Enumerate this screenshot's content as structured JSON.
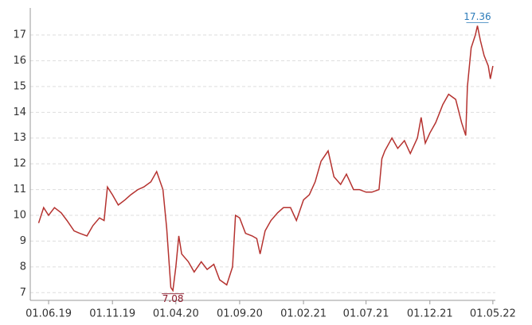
{
  "chart_data": {
    "type": "line",
    "x": [
      "2019-05-08",
      "2019-05-20",
      "2019-06-01",
      "2019-06-15",
      "2019-07-01",
      "2019-07-15",
      "2019-08-01",
      "2019-08-15",
      "2019-09-01",
      "2019-09-15",
      "2019-10-01",
      "2019-10-12",
      "2019-10-20",
      "2019-11-01",
      "2019-11-15",
      "2019-12-01",
      "2019-12-15",
      "2020-01-01",
      "2020-01-15",
      "2020-02-01",
      "2020-02-15",
      "2020-03-01",
      "2020-03-10",
      "2020-03-20",
      "2020-03-25",
      "2020-04-01",
      "2020-04-08",
      "2020-04-15",
      "2020-05-01",
      "2020-05-15",
      "2020-06-01",
      "2020-06-15",
      "2020-07-01",
      "2020-07-15",
      "2020-08-01",
      "2020-08-15",
      "2020-08-22",
      "2020-09-01",
      "2020-09-15",
      "2020-10-01",
      "2020-10-12",
      "2020-10-20",
      "2020-11-01",
      "2020-11-15",
      "2020-12-01",
      "2020-12-15",
      "2021-01-01",
      "2021-01-15",
      "2021-02-01",
      "2021-02-15",
      "2021-03-01",
      "2021-03-15",
      "2021-04-01",
      "2021-04-15",
      "2021-05-01",
      "2021-05-15",
      "2021-06-01",
      "2021-06-15",
      "2021-07-01",
      "2021-07-15",
      "2021-08-01",
      "2021-08-08",
      "2021-08-15",
      "2021-09-01",
      "2021-09-15",
      "2021-10-01",
      "2021-10-15",
      "2021-11-01",
      "2021-11-10",
      "2021-11-20",
      "2021-12-01",
      "2021-12-15",
      "2022-01-01",
      "2022-01-15",
      "2022-02-01",
      "2022-02-15",
      "2022-02-25",
      "2022-03-01",
      "2022-03-10",
      "2022-03-20",
      "2022-03-25",
      "2022-04-01",
      "2022-04-10",
      "2022-04-20",
      "2022-04-25",
      "2022-05-01"
    ],
    "series": [
      {
        "color": "#b5322f",
        "values": [
          9.7,
          10.3,
          10.0,
          10.3,
          10.1,
          9.8,
          9.4,
          9.3,
          9.2,
          9.6,
          9.9,
          9.8,
          11.1,
          10.8,
          10.4,
          10.6,
          10.8,
          11.0,
          11.1,
          11.3,
          11.7,
          11.0,
          9.5,
          7.2,
          7.08,
          8.0,
          9.2,
          8.5,
          8.2,
          7.8,
          8.2,
          7.9,
          8.1,
          7.5,
          7.3,
          8.0,
          10.0,
          9.9,
          9.3,
          9.2,
          9.1,
          8.5,
          9.4,
          9.8,
          10.1,
          10.3,
          10.3,
          9.8,
          10.6,
          10.8,
          11.3,
          12.1,
          12.5,
          11.5,
          11.2,
          11.6,
          11.0,
          11.0,
          10.9,
          10.9,
          11.0,
          12.2,
          12.5,
          13.0,
          12.6,
          12.9,
          12.4,
          13.0,
          13.8,
          12.8,
          13.2,
          13.6,
          14.3,
          14.7,
          14.5,
          13.6,
          13.1,
          15.0,
          16.5,
          17.0,
          17.36,
          16.8,
          16.2,
          15.8,
          15.3,
          15.8
        ]
      }
    ],
    "xlim": [
      "2019-04-18",
      "2022-05-07"
    ],
    "xticks": [
      {
        "value": "2019-06-01",
        "label": "01.06.19"
      },
      {
        "value": "2019-11-01",
        "label": "01.11.19"
      },
      {
        "value": "2020-04-01",
        "label": "01.04.20"
      },
      {
        "value": "2020-09-01",
        "label": "01.09.20"
      },
      {
        "value": "2021-02-01",
        "label": "01.02.21"
      },
      {
        "value": "2021-07-01",
        "label": "01.07.21"
      },
      {
        "value": "2021-12-01",
        "label": "01.12.21"
      },
      {
        "value": "2022-05-01",
        "label": "01.05.22"
      }
    ],
    "ylim": [
      6.7,
      18.05
    ],
    "yticks": [
      7,
      8,
      9,
      10,
      11,
      12,
      13,
      14,
      15,
      16,
      17
    ],
    "grid": true,
    "annotations": [
      {
        "label": "17.36",
        "x": "2022-03-25",
        "y": 17.36,
        "color": "#2b7bb9"
      },
      {
        "label": "7.08",
        "x": "2020-03-25",
        "y": 7.08,
        "color": "#8b1a2b"
      }
    ]
  }
}
